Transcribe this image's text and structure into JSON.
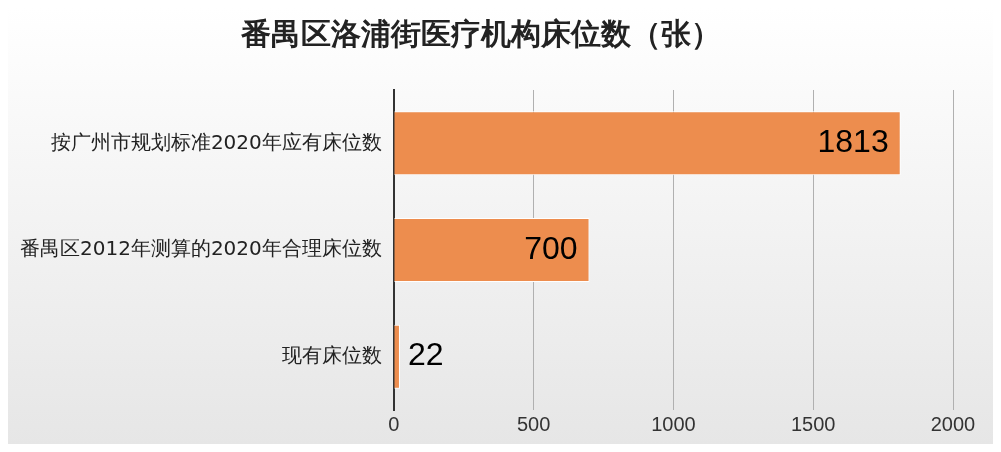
{
  "chart_data": {
    "type": "bar",
    "orientation": "horizontal",
    "title": "番禺区洛浦街医疗机构床位数（张）",
    "categories": [
      "按广州市规划标准2020年应有床位数",
      "番禺区2012年测算的2020年合理床位数",
      "现有床位数"
    ],
    "values": [
      1813,
      700,
      22
    ],
    "color": "#ed8d4e",
    "xlim": [
      0,
      2000
    ],
    "xticks": [
      0,
      500,
      1000,
      1500,
      2000
    ],
    "grid": "x",
    "data_labels": true
  }
}
